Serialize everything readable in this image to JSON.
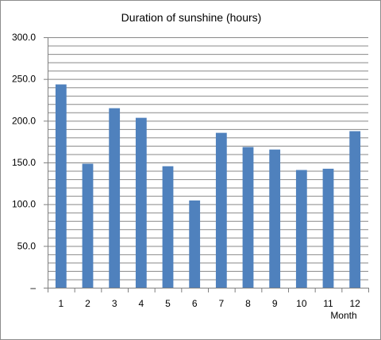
{
  "chart_data": {
    "type": "bar",
    "title": "Duration of sunshine (hours)",
    "xlabel": "Month",
    "ylabel": "",
    "categories": [
      "1",
      "2",
      "3",
      "4",
      "5",
      "6",
      "7",
      "8",
      "9",
      "10",
      "11",
      "12"
    ],
    "values": [
      243.5,
      148.5,
      215.0,
      203.5,
      145.5,
      104.5,
      185.5,
      168.5,
      165.5,
      141.0,
      142.5,
      187.5
    ],
    "ylim": [
      0,
      300
    ],
    "yticks": [
      0,
      50,
      100,
      150,
      200,
      250,
      300
    ],
    "ytick_labels": [
      "–",
      "50.0",
      "100.0",
      "150.0",
      "200.0",
      "250.0",
      "300.0"
    ],
    "minor_grid_step": 10,
    "grid": true,
    "legend": "none",
    "bar_color": "#4F81BD",
    "grid_color": "#888888"
  }
}
